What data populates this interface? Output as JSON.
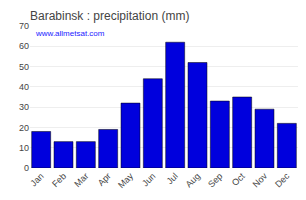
{
  "chart_data": {
    "type": "bar",
    "title": "Barabinsk : precipitation (mm)",
    "categories": [
      "Jan",
      "Feb",
      "Mar",
      "Apr",
      "May",
      "Jun",
      "Jul",
      "Aug",
      "Sep",
      "Oct",
      "Nov",
      "Dec"
    ],
    "values": [
      18,
      13,
      13,
      19,
      32,
      44,
      62,
      52,
      33,
      35,
      29,
      22
    ],
    "color": "#0000dd",
    "ylim": [
      0,
      70
    ],
    "yticks": [
      0,
      10,
      20,
      30,
      40,
      50,
      60,
      70
    ],
    "grid": true,
    "annotations": [
      "www.allmetsat.com"
    ]
  }
}
